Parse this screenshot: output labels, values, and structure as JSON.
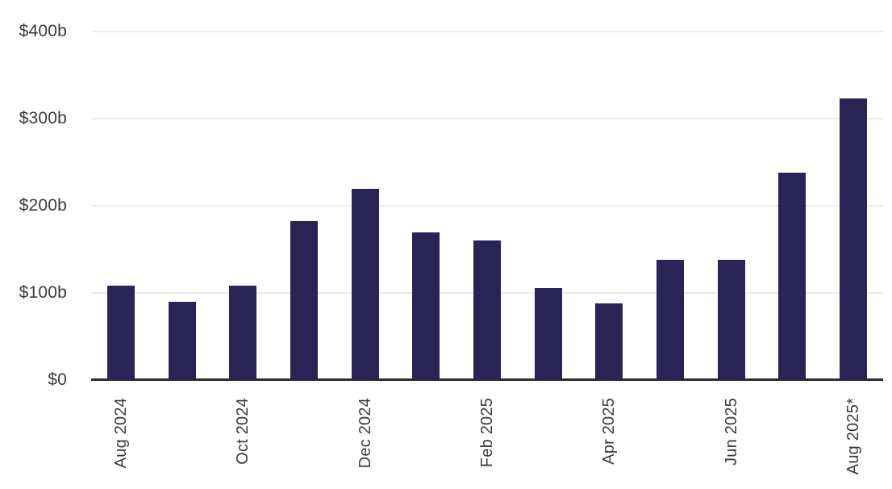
{
  "chart_data": {
    "type": "bar",
    "title": "",
    "xlabel": "",
    "ylabel": "",
    "ylim": [
      0,
      400
    ],
    "grid": "horizontal",
    "legend": "none",
    "y_ticks": [
      {
        "value": 0,
        "label": "$0"
      },
      {
        "value": 100,
        "label": "$100b"
      },
      {
        "value": 200,
        "label": "$200b"
      },
      {
        "value": 300,
        "label": "$300b"
      },
      {
        "value": 400,
        "label": "$400b"
      }
    ],
    "bars": [
      {
        "label": "Aug 2024",
        "value": 108
      },
      {
        "label": "",
        "value": 90
      },
      {
        "label": "Oct 2024",
        "value": 108
      },
      {
        "label": "",
        "value": 182
      },
      {
        "label": "Dec 2024",
        "value": 219
      },
      {
        "label": "",
        "value": 169
      },
      {
        "label": "Feb 2025",
        "value": 160
      },
      {
        "label": "",
        "value": 106
      },
      {
        "label": "Apr 2025",
        "value": 88
      },
      {
        "label": "",
        "value": 138
      },
      {
        "label": "Jun 2025",
        "value": 138
      },
      {
        "label": "",
        "value": 238
      },
      {
        "label": "Aug 2025*",
        "value": 323
      }
    ],
    "colors": {
      "bar": "#292356",
      "axis_line": "#2d2d2d",
      "gridline": "#ececec",
      "tick_text": "#3b3b3b",
      "background": "#ffffff"
    }
  }
}
